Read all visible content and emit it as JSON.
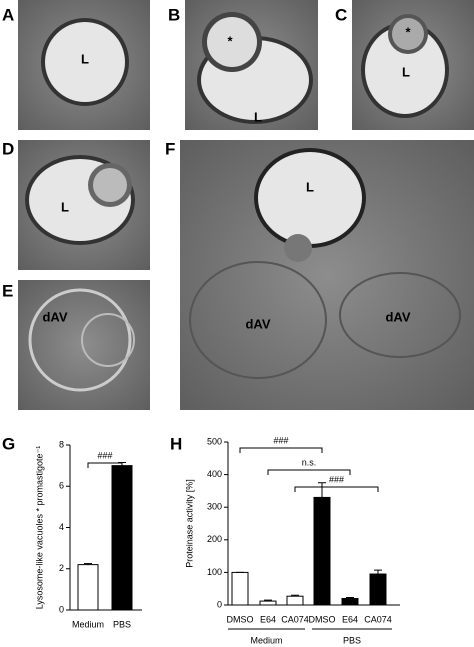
{
  "panels": [
    {
      "letter": "A",
      "labels": [
        "L"
      ]
    },
    {
      "letter": "B",
      "labels": [
        "*",
        "L"
      ]
    },
    {
      "letter": "C",
      "labels": [
        "*",
        "L"
      ]
    },
    {
      "letter": "D",
      "labels": [
        "L"
      ]
    },
    {
      "letter": "E",
      "labels": [
        "dAV"
      ]
    },
    {
      "letter": "F",
      "labels": [
        "L",
        "dAV",
        "dAV"
      ]
    }
  ],
  "chart_data": [
    {
      "type": "bar",
      "letter": "G",
      "ylabel": "Lysosome-like vacuoles * promastigote⁻¹",
      "categories": [
        "Medium",
        "PBS"
      ],
      "values": [
        2.2,
        7.0
      ],
      "errors": [
        0.05,
        0.15
      ],
      "colors": [
        "#ffffff",
        "#000000"
      ],
      "ylim": [
        0,
        8
      ],
      "yticks": [
        0,
        2,
        4,
        6,
        8
      ],
      "annotations": [
        "###"
      ]
    },
    {
      "type": "bar",
      "letter": "H",
      "ylabel": "Proteinase activity [%]",
      "categories": [
        "DMSO",
        "E64",
        "CA074",
        "DMSO",
        "E64",
        "CA074"
      ],
      "values": [
        100,
        12,
        27,
        330,
        20,
        95
      ],
      "errors": [
        0,
        3,
        3,
        45,
        3,
        12
      ],
      "colors": [
        "#ffffff",
        "#ffffff",
        "#ffffff",
        "#000000",
        "#000000",
        "#000000"
      ],
      "groups": [
        "Medium",
        "PBS"
      ],
      "ylim": [
        0,
        500
      ],
      "yticks": [
        0,
        100,
        200,
        300,
        400,
        500
      ],
      "annotations": [
        "###",
        "n.s.",
        "###"
      ]
    }
  ]
}
